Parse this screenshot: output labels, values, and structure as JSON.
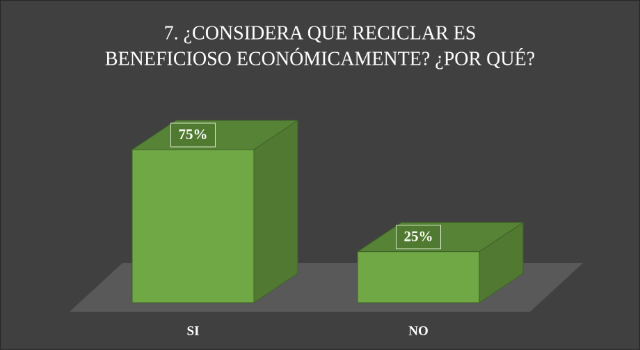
{
  "chart_data": {
    "type": "bar3d",
    "title": [
      "7. ¿CONSIDERA QUE RECICLAR ES",
      "BENEFICIOSO ECONÓMICAMENTE? ¿POR QUÉ?"
    ],
    "categories": [
      "SI",
      "NO"
    ],
    "values": [
      75,
      25
    ],
    "value_labels": [
      "75%",
      "25%"
    ],
    "color": "#70a845"
  }
}
